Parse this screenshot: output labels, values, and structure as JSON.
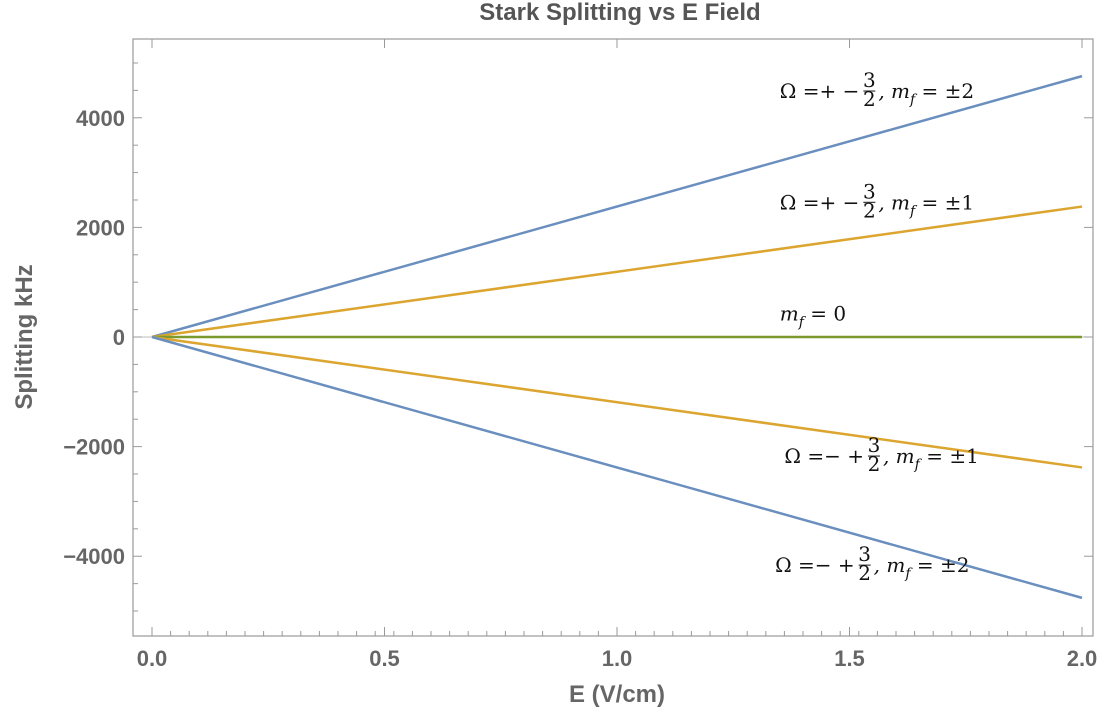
{
  "chart_data": {
    "type": "line",
    "title": "Stark Splitting vs E Field",
    "xlabel": "E (V/cm)",
    "ylabel": "Splitting kHz",
    "xlim": [
      0,
      2
    ],
    "ylim": [
      -5200,
      5200
    ],
    "x_ticks": [
      0,
      0.5,
      1.0,
      1.5,
      2.0
    ],
    "x_tick_labels": [
      "0.0",
      "0.5",
      "1.0",
      "1.5",
      "2.0"
    ],
    "y_ticks": [
      -4000,
      -2000,
      0,
      2000,
      4000
    ],
    "y_tick_labels": [
      "−4000",
      "−2000",
      "0",
      "2000",
      "4000"
    ],
    "grid": false,
    "series": [
      {
        "x": [
          0,
          2
        ],
        "y": [
          0,
          4760
        ],
        "color": "#6a8fbf"
      },
      {
        "x": [
          0,
          2
        ],
        "y": [
          0,
          2380
        ],
        "color": "#dca530"
      },
      {
        "x": [
          0,
          2
        ],
        "y": [
          0,
          0
        ],
        "color": "#7b9a2e"
      },
      {
        "x": [
          0,
          2
        ],
        "y": [
          0,
          -2380
        ],
        "color": "#dca530"
      },
      {
        "x": [
          0,
          2
        ],
        "y": [
          0,
          -4760
        ],
        "color": "#6a8fbf"
      }
    ],
    "annotations": [
      {
        "parts": [
          "Ω =+ −",
          "3",
          "2",
          ", m",
          "f",
          " = ±2"
        ],
        "x": 1.35,
        "y": 4360
      },
      {
        "parts": [
          "Ω =+ −",
          "3",
          "2",
          ", m",
          "f",
          " = ±1"
        ],
        "x": 1.35,
        "y": 2330
      },
      {
        "parts": [
          "",
          "",
          "",
          "m",
          "f",
          " = 0"
        ],
        "x": 1.35,
        "y": 300
      },
      {
        "parts": [
          "Ω =− +",
          "3",
          "2",
          ", m",
          "f",
          " = ±1"
        ],
        "x": 1.36,
        "y": -2300
      },
      {
        "parts": [
          "Ω =− +",
          "3",
          "2",
          ", m",
          "f",
          " = ±2"
        ],
        "x": 1.34,
        "y": -4290
      }
    ]
  }
}
